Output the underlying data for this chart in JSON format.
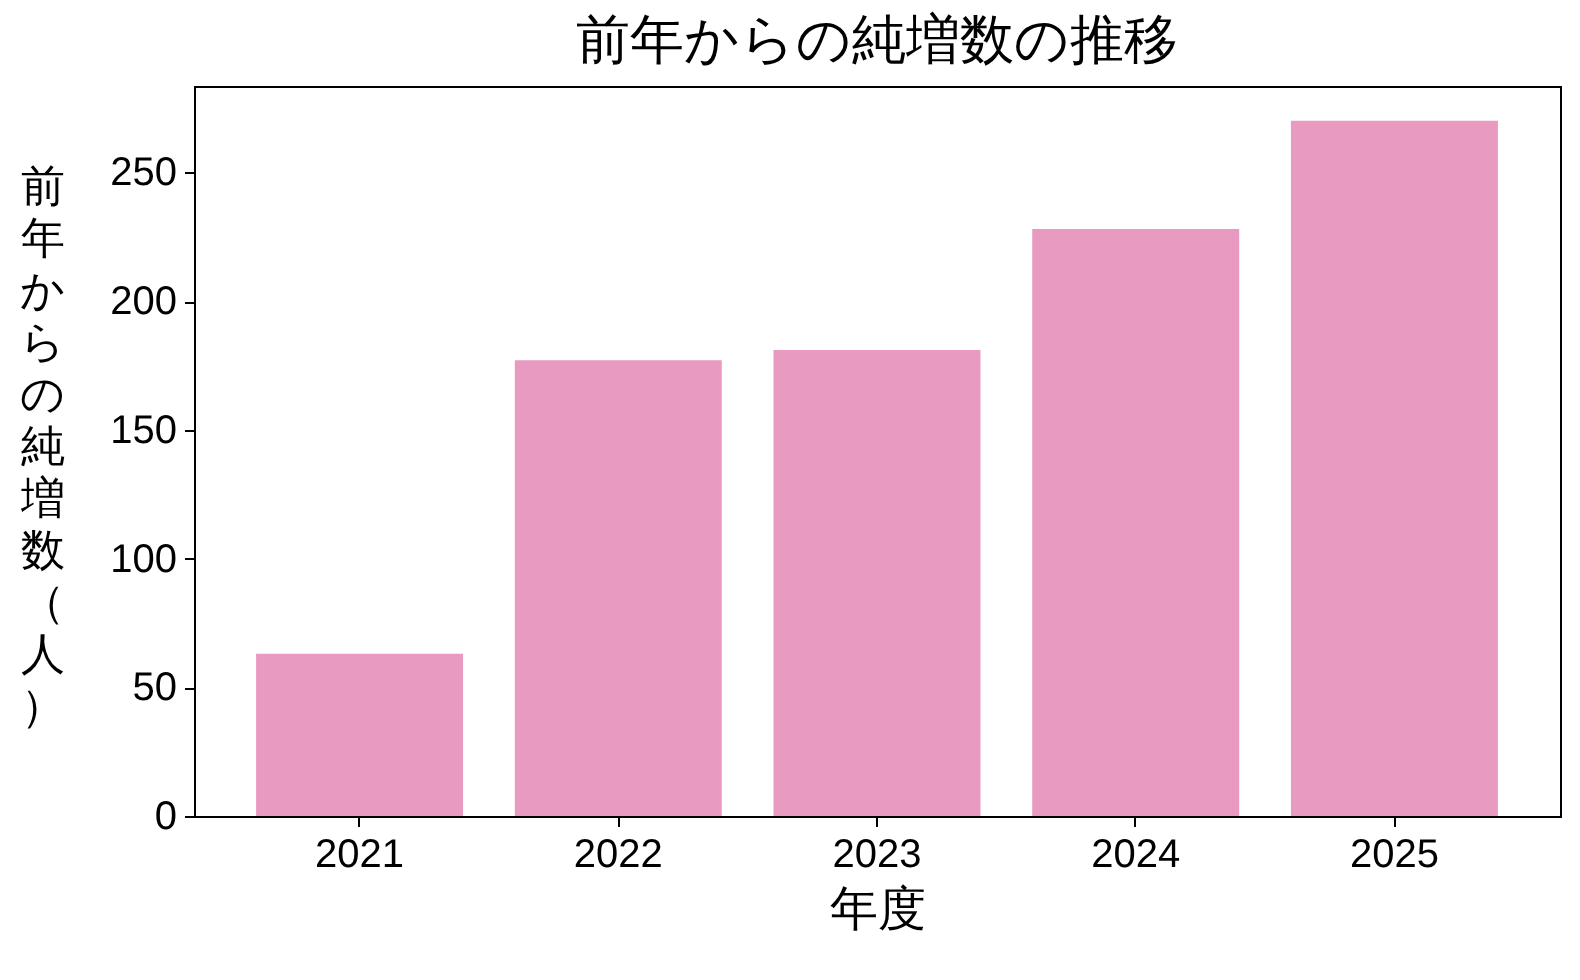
{
  "chart_data": {
    "type": "bar",
    "title": "前年からの純増数の推移",
    "xlabel": "年度",
    "ylabel": "前年からの純増数（人）",
    "categories": [
      "2021",
      "2022",
      "2023",
      "2024",
      "2025"
    ],
    "values": [
      63,
      177,
      181,
      228,
      270
    ],
    "color": "#e89ac1",
    "ylim": [
      0,
      283.5
    ],
    "yticks": [
      0,
      50,
      100,
      150,
      200,
      250
    ],
    "grid": false
  }
}
